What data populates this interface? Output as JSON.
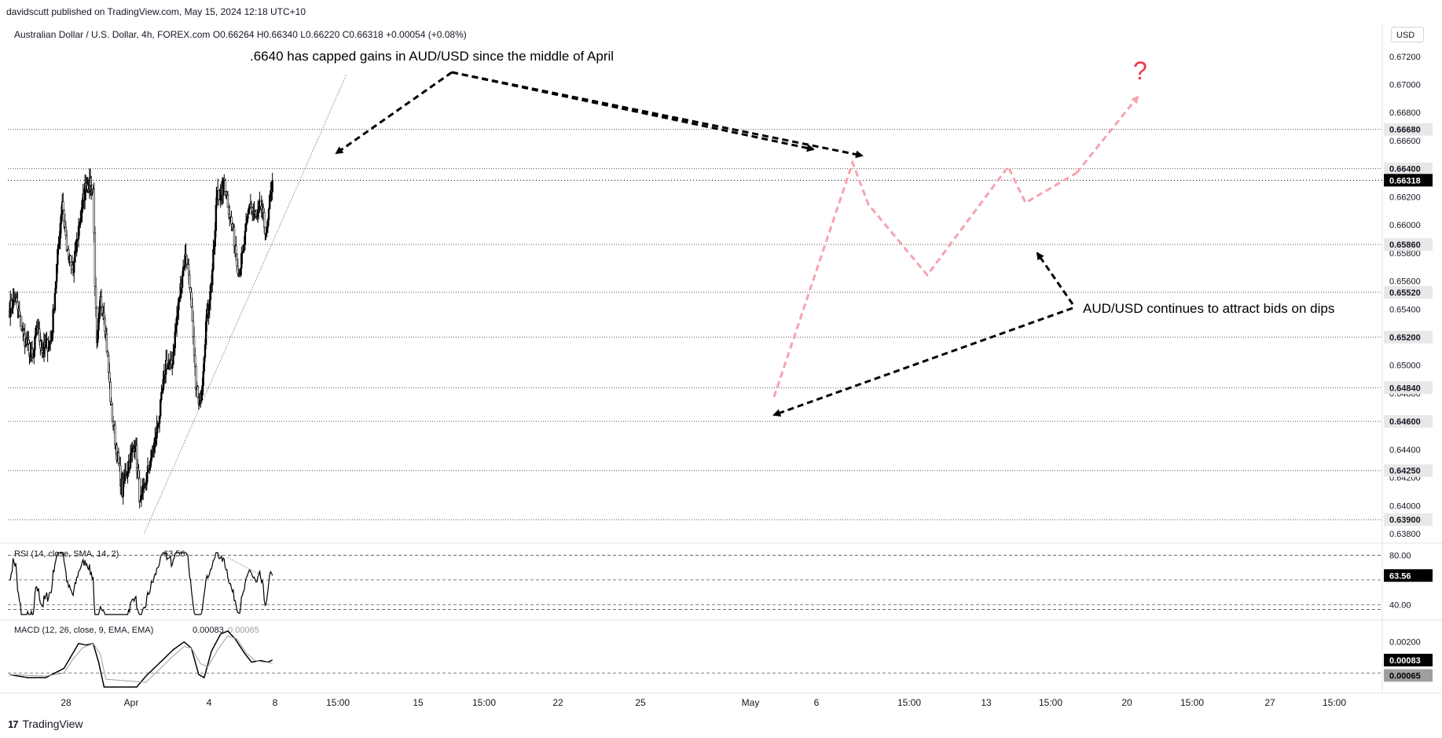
{
  "header": {
    "published": "davidscutt published on TradingView.com, May 15, 2024 12:18 UTC+10",
    "symbol_line": "Australian Dollar / U.S. Dollar, 4h, FOREX.com",
    "ohlc": {
      "o": "O0.66264",
      "h": "H0.66340",
      "l": "L0.66220",
      "c": "C0.66318",
      "chg": "+0.00054 (+0.08%)"
    }
  },
  "currency_button": "USD",
  "brand": "TradingView",
  "annotations": {
    "resistance_note": ".6640 has capped gains in AUD/USD since the middle of April",
    "bids_note": "AUD/USD continues to attract bids on dips",
    "question_mark": "?"
  },
  "colors": {
    "candle_up": "#000000",
    "candle_down": "#ffffff",
    "candle_border": "#000000",
    "arrow_black": "#000000",
    "arrow_pink": "#f7a3ad",
    "question_mark": "#f23645",
    "macd_line": "#000000",
    "signal_line": "#9e9e9e",
    "price_tag_dark": "#000000",
    "price_tag_light": "#e8e8e8"
  },
  "chart_data": [
    {
      "type": "candlestick",
      "title": "Australian Dollar / U.S. Dollar, 4h, FOREX.com",
      "price_axis_ticks": [
        "0.67200",
        "0.67000",
        "0.66800",
        "0.66600",
        "0.66400",
        "0.66200",
        "0.66000",
        "0.65800",
        "0.65600",
        "0.65400",
        "0.65200",
        "0.65000",
        "0.64800",
        "0.64600",
        "0.64400",
        "0.64200",
        "0.64000",
        "0.63800"
      ],
      "horizontal_levels": [
        "0.66680",
        "0.66400",
        "0.65860",
        "0.65520",
        "0.65200",
        "0.64840",
        "0.64600",
        "0.64250",
        "0.63900"
      ],
      "level_values": [
        0.6668,
        0.664,
        0.6586,
        0.6552,
        0.652,
        0.6484,
        0.646,
        0.6425,
        0.639
      ],
      "last_price": "0.66318",
      "last_value": 0.66318,
      "ylim": [
        0.6375,
        0.6735
      ],
      "x_tick_labels": [
        "28",
        "Apr",
        "4",
        "8",
        "15:00",
        "15",
        "15:00",
        "22",
        "25",
        "May",
        "6",
        "15:00",
        "13",
        "15:00",
        "20",
        "15:00",
        "27",
        "15:00"
      ],
      "path_keypoints": [
        {
          "i": 0,
          "p": 0.654
        },
        {
          "i": 6,
          "p": 0.6548
        },
        {
          "i": 16,
          "p": 0.652
        },
        {
          "i": 26,
          "p": 0.6504
        },
        {
          "i": 30,
          "p": 0.6528
        },
        {
          "i": 36,
          "p": 0.651
        },
        {
          "i": 46,
          "p": 0.6518
        },
        {
          "i": 52,
          "p": 0.657
        },
        {
          "i": 58,
          "p": 0.6618
        },
        {
          "i": 64,
          "p": 0.6578
        },
        {
          "i": 70,
          "p": 0.6566
        },
        {
          "i": 76,
          "p": 0.6598
        },
        {
          "i": 80,
          "p": 0.6614
        },
        {
          "i": 84,
          "p": 0.663
        },
        {
          "i": 92,
          "p": 0.6626
        },
        {
          "i": 94,
          "p": 0.656
        },
        {
          "i": 96,
          "p": 0.6512
        },
        {
          "i": 100,
          "p": 0.6546
        },
        {
          "i": 104,
          "p": 0.6538
        },
        {
          "i": 108,
          "p": 0.6504
        },
        {
          "i": 112,
          "p": 0.6468
        },
        {
          "i": 118,
          "p": 0.6438
        },
        {
          "i": 124,
          "p": 0.641
        },
        {
          "i": 128,
          "p": 0.6424
        },
        {
          "i": 134,
          "p": 0.6436
        },
        {
          "i": 138,
          "p": 0.6446
        },
        {
          "i": 144,
          "p": 0.64
        },
        {
          "i": 148,
          "p": 0.6412
        },
        {
          "i": 154,
          "p": 0.643
        },
        {
          "i": 160,
          "p": 0.6446
        },
        {
          "i": 166,
          "p": 0.647
        },
        {
          "i": 172,
          "p": 0.6502
        },
        {
          "i": 178,
          "p": 0.6498
        },
        {
          "i": 184,
          "p": 0.6534
        },
        {
          "i": 190,
          "p": 0.6566
        },
        {
          "i": 194,
          "p": 0.658
        },
        {
          "i": 198,
          "p": 0.656
        },
        {
          "i": 204,
          "p": 0.6494
        },
        {
          "i": 208,
          "p": 0.647
        },
        {
          "i": 212,
          "p": 0.649
        },
        {
          "i": 216,
          "p": 0.653
        },
        {
          "i": 222,
          "p": 0.656
        },
        {
          "i": 226,
          "p": 0.6594
        },
        {
          "i": 228,
          "p": 0.6628
        },
        {
          "i": 232,
          "p": 0.6618
        },
        {
          "i": 236,
          "p": 0.6632
        },
        {
          "i": 240,
          "p": 0.6616
        },
        {
          "i": 244,
          "p": 0.66
        },
        {
          "i": 248,
          "p": 0.6586
        },
        {
          "i": 252,
          "p": 0.6566
        },
        {
          "i": 256,
          "p": 0.6578
        },
        {
          "i": 260,
          "p": 0.6596
        },
        {
          "i": 264,
          "p": 0.6616
        },
        {
          "i": 268,
          "p": 0.6608
        },
        {
          "i": 272,
          "p": 0.6604
        },
        {
          "i": 276,
          "p": 0.6614
        },
        {
          "i": 280,
          "p": 0.66
        },
        {
          "i": 283,
          "p": 0.6594
        },
        {
          "i": 286,
          "p": 0.6616
        },
        {
          "i": 289,
          "p": 0.6632
        }
      ]
    },
    {
      "type": "line",
      "title": "RSI (14, close, SMA, 14, 2)",
      "value_label": "63.56",
      "current_value": 63.56,
      "axis_ticks": [
        "80.00",
        "40.00"
      ],
      "ylim": [
        30,
        86
      ]
    },
    {
      "type": "line",
      "title": "MACD (12, 26, close, 9, EMA, EMA)",
      "macd_label": "0.00083",
      "signal_label": "0.00065",
      "macd_current": 0.00083,
      "signal_current": 0.00065,
      "axis_ticks": [
        "0.00200"
      ],
      "ylim": [
        -0.0012,
        0.0032
      ],
      "series": [
        {
          "name": "MACD",
          "values_keypoints": [
            [
              0,
              -0.0001
            ],
            [
              20,
              -0.0003
            ],
            [
              40,
              -0.0003
            ],
            [
              60,
              0.0003
            ],
            [
              70,
              0.0013
            ],
            [
              76,
              0.0019
            ],
            [
              84,
              0.0018
            ],
            [
              92,
              0.0019
            ],
            [
              98,
              0.0007
            ],
            [
              104,
              -0.0009
            ],
            [
              120,
              -0.0009
            ],
            [
              140,
              -0.0009
            ],
            [
              150,
              -0.0002
            ],
            [
              166,
              0.0007
            ],
            [
              180,
              0.0015
            ],
            [
              192,
              0.002
            ],
            [
              200,
              0.0016
            ],
            [
              208,
              -0.0001
            ],
            [
              214,
              -0.0003
            ],
            [
              222,
              0.0014
            ],
            [
              232,
              0.0025
            ],
            [
              240,
              0.0027
            ],
            [
              248,
              0.0022
            ],
            [
              258,
              0.0013
            ],
            [
              266,
              0.0007
            ],
            [
              276,
              0.0008
            ],
            [
              284,
              0.0007
            ],
            [
              289,
              0.00083
            ]
          ]
        },
        {
          "name": "Signal",
          "values_keypoints": [
            [
              0,
              -0.0001
            ],
            [
              40,
              -0.0002
            ],
            [
              60,
              0.0
            ],
            [
              70,
              0.0009
            ],
            [
              80,
              0.0016
            ],
            [
              92,
              0.0019
            ],
            [
              100,
              0.0012
            ],
            [
              106,
              -0.0004
            ],
            [
              150,
              -0.0006
            ],
            [
              166,
              0.0003
            ],
            [
              180,
              0.0011
            ],
            [
              192,
              0.0017
            ],
            [
              200,
              0.0016
            ],
            [
              210,
              0.0006
            ],
            [
              218,
              0.0004
            ],
            [
              230,
              0.0016
            ],
            [
              240,
              0.0024
            ],
            [
              250,
              0.0022
            ],
            [
              260,
              0.0013
            ],
            [
              270,
              0.0008
            ],
            [
              280,
              0.0007
            ],
            [
              289,
              0.00065
            ]
          ]
        }
      ]
    }
  ]
}
